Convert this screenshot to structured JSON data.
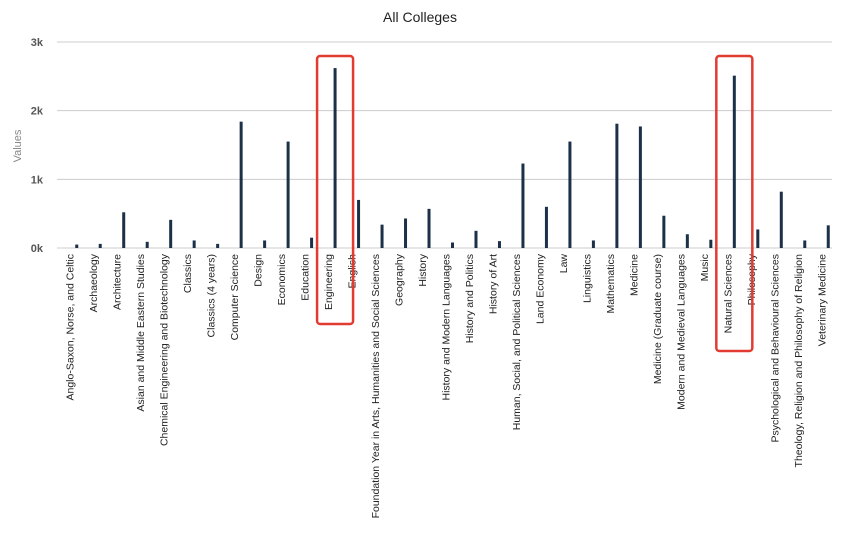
{
  "chart_data": {
    "type": "bar",
    "title": "All Colleges",
    "xlabel": "",
    "ylabel": "Values",
    "ylim": [
      0,
      3000
    ],
    "yticks": [
      0,
      1000,
      2000,
      3000
    ],
    "ytick_labels": [
      "0k",
      "1k",
      "2k",
      "3k"
    ],
    "grid": true,
    "legend": "none",
    "bar_color": "#1c3048",
    "highlight_color": "#e23b32",
    "highlighted_categories": [
      "Engineering",
      "Natural Sciences"
    ],
    "categories": [
      "Anglo-Saxon, Norse, and Celtic",
      "Archaeology",
      "Architecture",
      "Asian and Middle Eastern Studies",
      "Chemical Engineering and Biotechnology",
      "Classics",
      "Classics (4 years)",
      "Computer Science",
      "Design",
      "Economics",
      "Education",
      "Engineering",
      "English",
      "Foundation Year in Arts, Humanities and Social Sciences",
      "Geography",
      "History",
      "History and Modern Languages",
      "History and Politics",
      "History of Art",
      "Human, Social, and Political Sciences",
      "Land Economy",
      "Law",
      "Linguistics",
      "Mathematics",
      "Medicine",
      "Medicine (Graduate course)",
      "Modern and Medieval Languages",
      "Music",
      "Natural Sciences",
      "Philosophy",
      "Psychological and Behavioural Sciences",
      "Theology, Religion and Philosophy of Religion",
      "Veterinary Medicine"
    ],
    "values": [
      50,
      60,
      520,
      90,
      410,
      110,
      60,
      1840,
      110,
      1550,
      150,
      2620,
      700,
      340,
      430,
      570,
      80,
      250,
      100,
      1230,
      600,
      1550,
      110,
      1810,
      1770,
      470,
      200,
      120,
      2510,
      270,
      820,
      110,
      330
    ]
  }
}
